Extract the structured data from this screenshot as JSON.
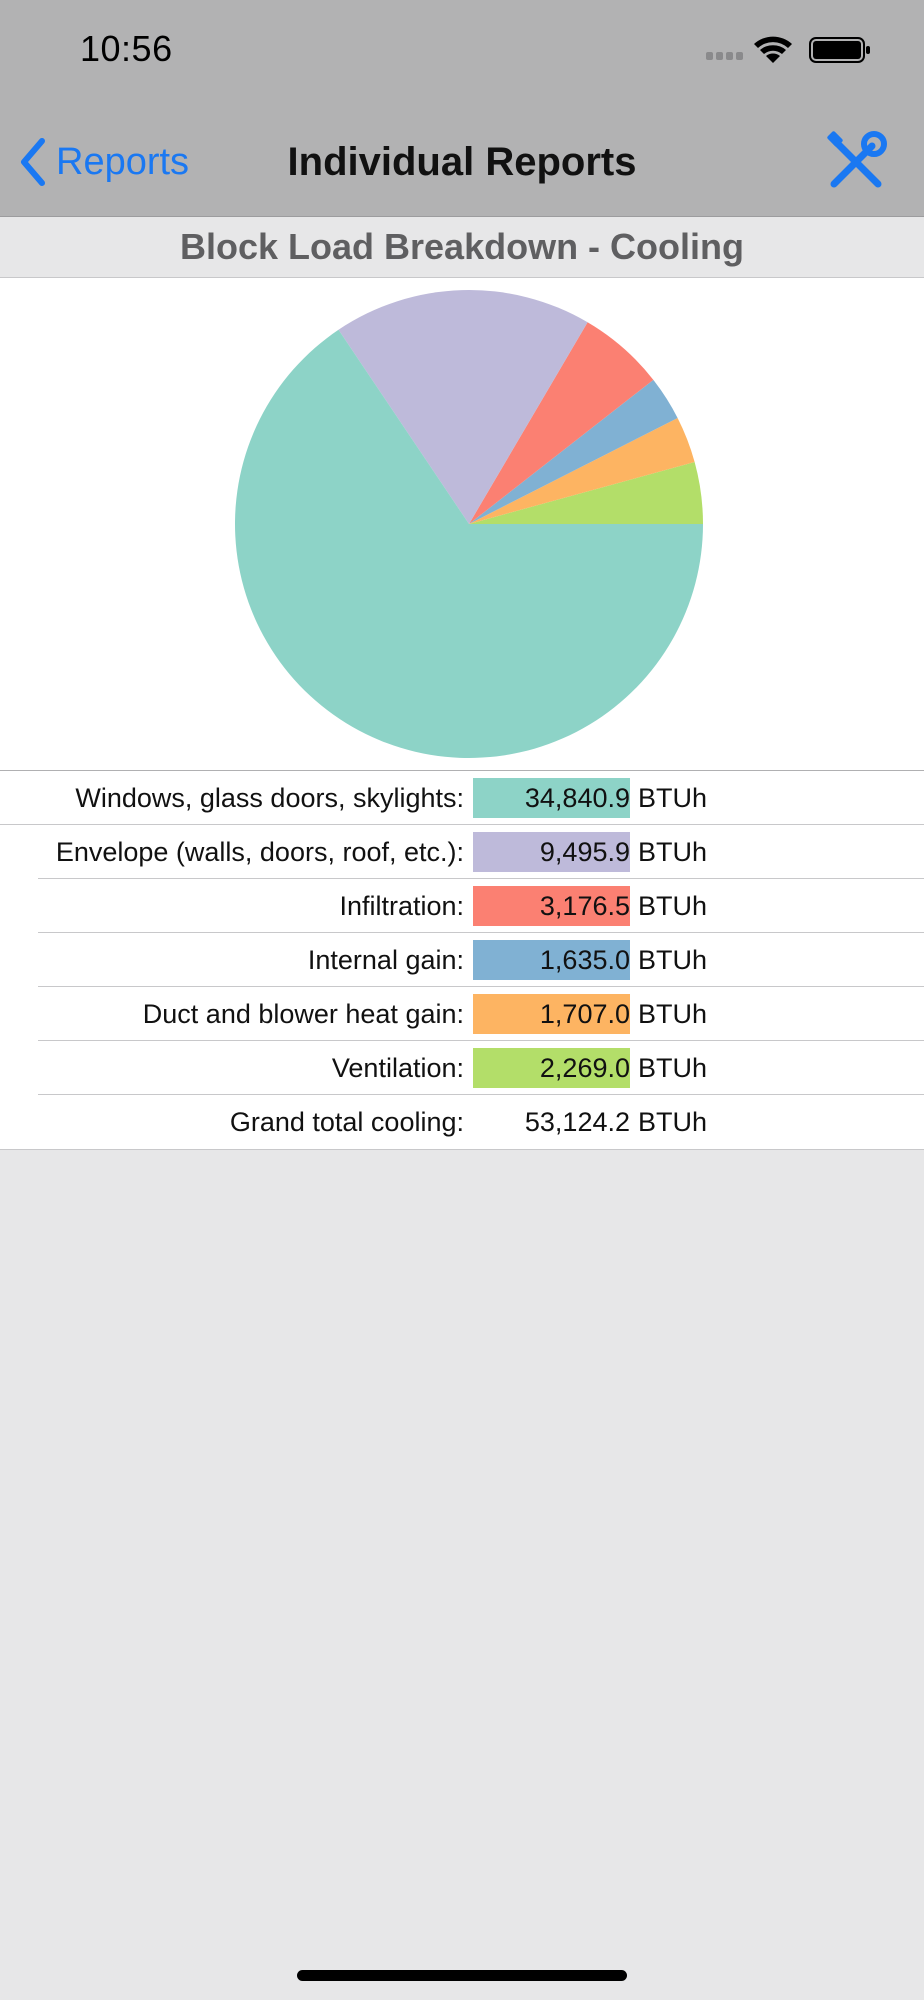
{
  "status_bar": {
    "time": "10:56"
  },
  "nav": {
    "back_label": "Reports",
    "title": "Individual Reports"
  },
  "section_title": "Block Load Breakdown - Cooling",
  "colors": {
    "accent": "#1a78f2",
    "windows": "#8dd3c7",
    "envelope": "#bebada",
    "infiltration": "#fb8072",
    "internal": "#80b1d3",
    "duct": "#fdb462",
    "ventilation": "#b3de69"
  },
  "rows": [
    {
      "label": "Windows, glass doors, skylights:",
      "value": "34,840.9",
      "unit": "BTUh",
      "color": "#8dd3c7"
    },
    {
      "label": "Envelope (walls, doors, roof, etc.):",
      "value": "9,495.9",
      "unit": "BTUh",
      "color": "#bebada"
    },
    {
      "label": "Infiltration:",
      "value": "3,176.5",
      "unit": "BTUh",
      "color": "#fb8072"
    },
    {
      "label": "Internal gain:",
      "value": "1,635.0",
      "unit": "BTUh",
      "color": "#80b1d3"
    },
    {
      "label": "Duct and blower heat gain:",
      "value": "1,707.0",
      "unit": "BTUh",
      "color": "#fdb462"
    },
    {
      "label": "Ventilation:",
      "value": "2,269.0",
      "unit": "BTUh",
      "color": "#b3de69"
    }
  ],
  "total": {
    "label": "Grand total cooling:",
    "value": "53,124.2",
    "unit": "BTUh"
  },
  "chart_data": {
    "type": "pie",
    "categories": [
      "Windows, glass doors, skylights",
      "Envelope (walls, doors, roof, etc.)",
      "Infiltration",
      "Internal gain",
      "Duct and blower heat gain",
      "Ventilation"
    ],
    "values": [
      34840.9,
      9495.9,
      3176.5,
      1635.0,
      1707.0,
      2269.0
    ],
    "colors": [
      "#8dd3c7",
      "#bebada",
      "#fb8072",
      "#80b1d3",
      "#fdb462",
      "#b3de69"
    ],
    "title": "",
    "start_angle": "3 o'clock",
    "direction": "counterclockwise"
  }
}
